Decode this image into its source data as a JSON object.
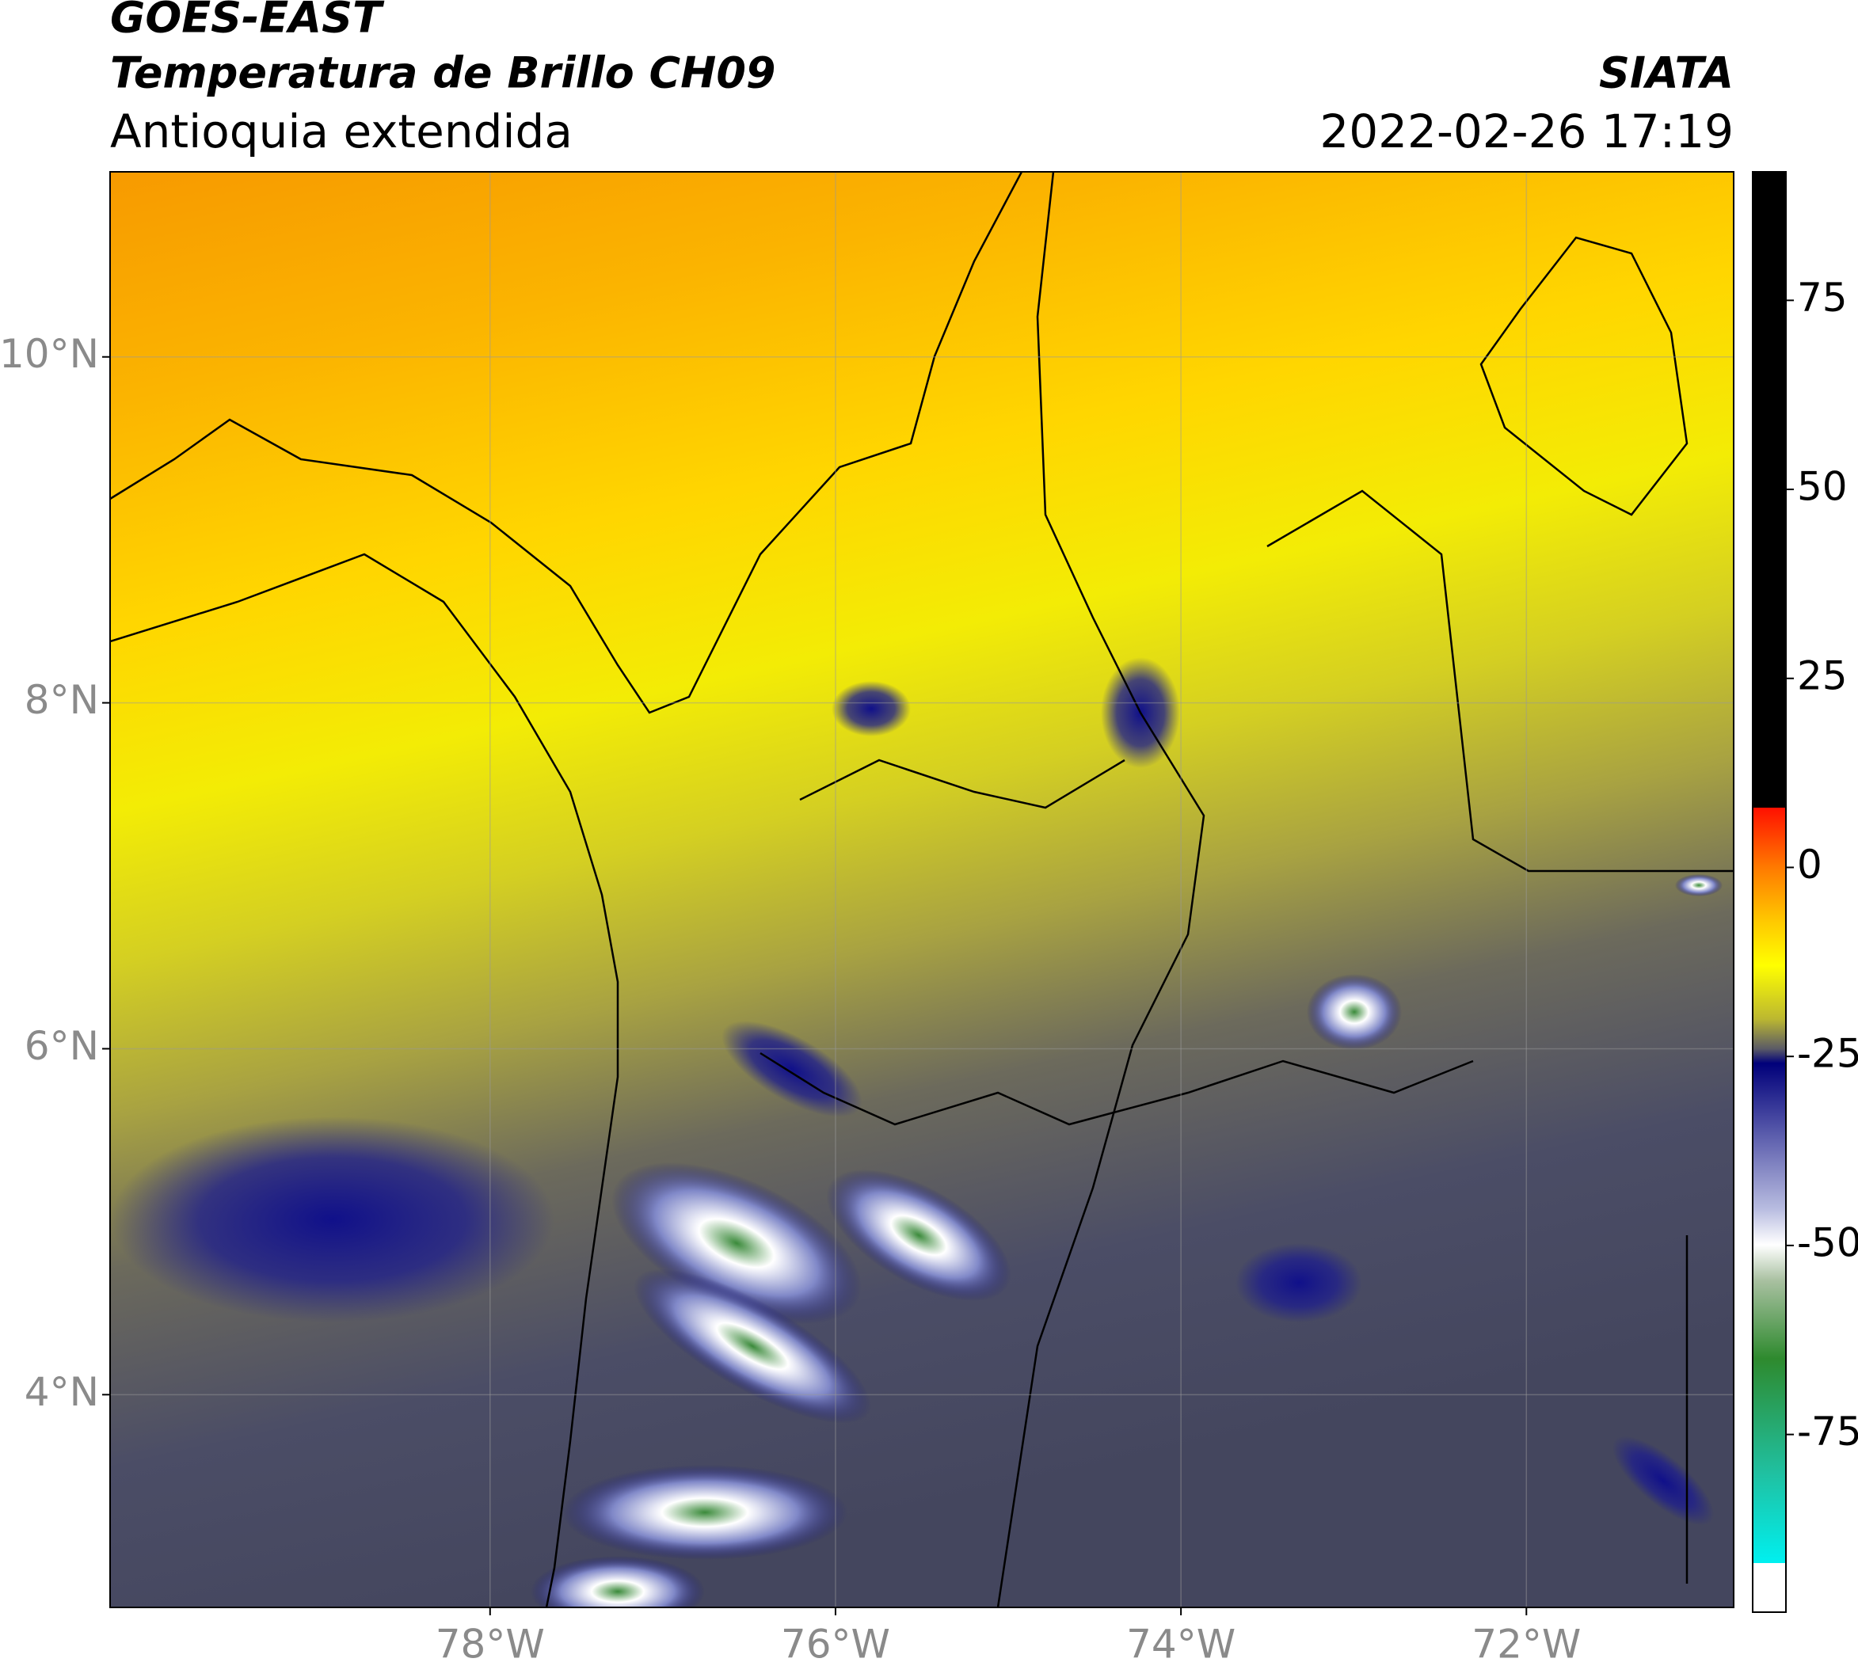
{
  "header": {
    "title": "GOES-EAST",
    "subtitle": "Temperatura de Brillo CH09",
    "region": "Antioquia extendida",
    "source": "SIATA",
    "datetime": "2022-02-26 17:19"
  },
  "map": {
    "xlim": [
      -80.2,
      -70.8
    ],
    "ylim": [
      2.77,
      11.07
    ],
    "xticks": [
      {
        "value": -78,
        "label": "78°W"
      },
      {
        "value": -76,
        "label": "76°W"
      },
      {
        "value": -74,
        "label": "74°W"
      },
      {
        "value": -72,
        "label": "72°W"
      }
    ],
    "yticks": [
      {
        "value": 10,
        "label": "10°N"
      },
      {
        "value": 8,
        "label": "8°N"
      },
      {
        "value": 6,
        "label": "6°N"
      },
      {
        "value": 4,
        "label": "4°N"
      }
    ],
    "grid": true
  },
  "colorbar": {
    "ylim": [
      -98.5,
      92
    ],
    "yticks": [
      75,
      50,
      25,
      0,
      -25,
      -50,
      -75
    ]
  }
}
